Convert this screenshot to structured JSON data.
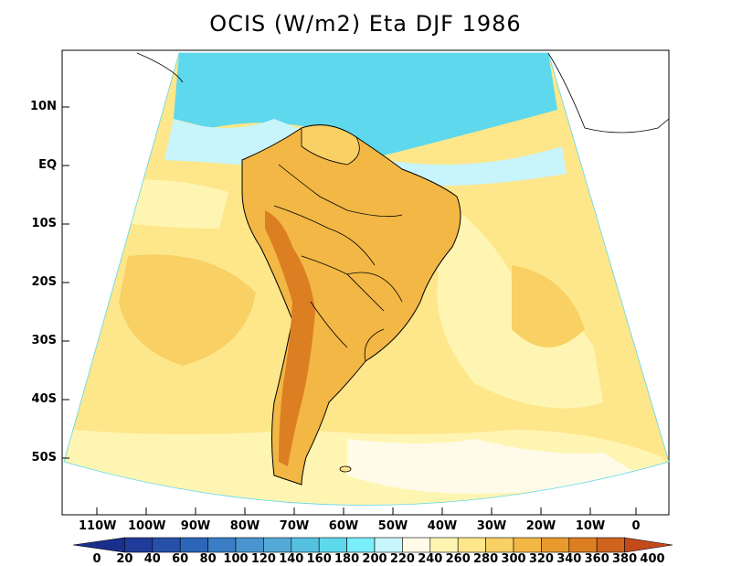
{
  "title": "OCIS (W/m2) Eta DJF 1986",
  "lat_labels": [
    "10N",
    "EQ",
    "10S",
    "20S",
    "30S",
    "40S",
    "50S"
  ],
  "lon_labels": [
    "110W",
    "100W",
    "90W",
    "80W",
    "70W",
    "60W",
    "50W",
    "40W",
    "30W",
    "20W",
    "10W",
    "0"
  ],
  "colorbar": {
    "labels": [
      "0",
      "20",
      "40",
      "60",
      "80",
      "100",
      "120",
      "140",
      "160",
      "180",
      "200",
      "220",
      "240",
      "260",
      "280",
      "300",
      "320",
      "340",
      "360",
      "380",
      "400"
    ],
    "colors": [
      "#1a2f8c",
      "#1f3c9a",
      "#2750a8",
      "#2d66b8",
      "#3a7ec6",
      "#4a95cf",
      "#54aad6",
      "#55c0e0",
      "#5ed8ec",
      "#7aeefb",
      "#c8f4fb",
      "#fffbe8",
      "#fff5b3",
      "#fde78a",
      "#f8d064",
      "#f2b744",
      "#e89a2c",
      "#dc7e22",
      "#cf641f",
      "#c24a1b"
    ]
  }
}
